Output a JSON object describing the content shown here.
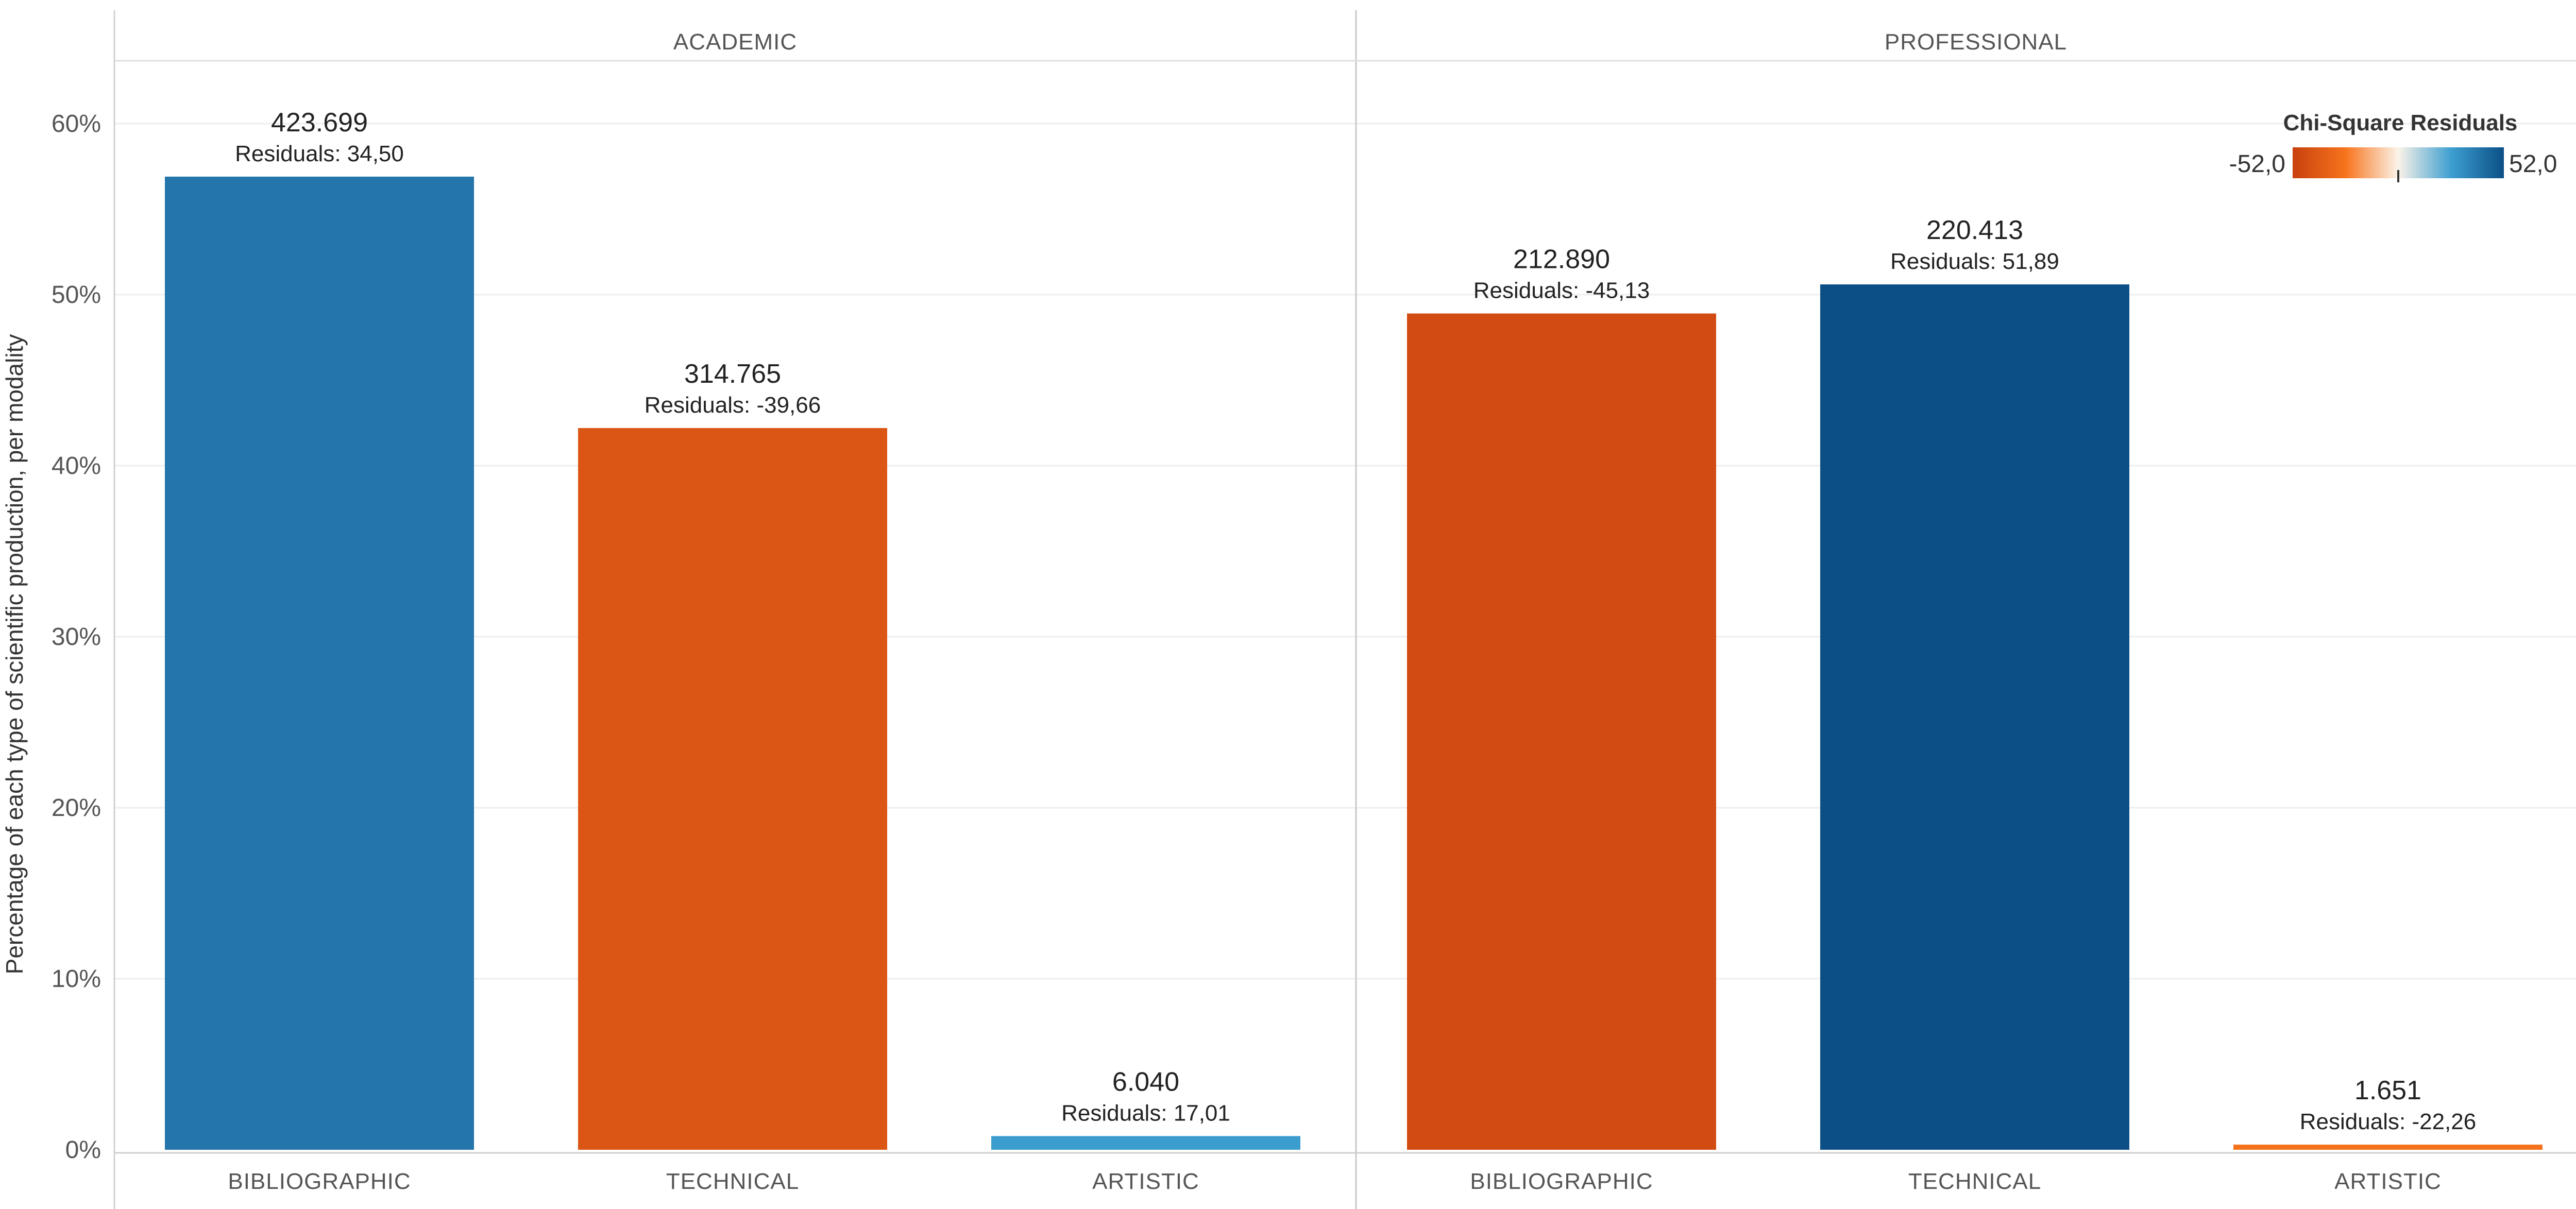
{
  "chart_data": {
    "type": "bar",
    "ylabel": "Percentage of each type of scientific production, per modality",
    "ylim": [
      0,
      0.63
    ],
    "yticks": [
      {
        "value": 0.0,
        "label": "0%"
      },
      {
        "value": 0.1,
        "label": "10%"
      },
      {
        "value": 0.2,
        "label": "20%"
      },
      {
        "value": 0.3,
        "label": "30%"
      },
      {
        "value": 0.4,
        "label": "40%"
      },
      {
        "value": 0.5,
        "label": "50%"
      },
      {
        "value": 0.6,
        "label": "60%"
      }
    ],
    "grid": true,
    "residual_prefix": "Residuals: ",
    "panels": [
      {
        "name": "ACADEMIC",
        "bars": [
          {
            "category": "BIBLIOGRAPHIC",
            "percentage": 0.569,
            "count_label": "423.699",
            "residual": 34.5,
            "residual_label": "34,50"
          },
          {
            "category": "TECHNICAL",
            "percentage": 0.422,
            "count_label": "314.765",
            "residual": -39.66,
            "residual_label": "-39,66"
          },
          {
            "category": "ARTISTIC",
            "percentage": 0.008,
            "count_label": "6.040",
            "residual": 17.01,
            "residual_label": "17,01"
          }
        ]
      },
      {
        "name": "PROFESSIONAL",
        "bars": [
          {
            "category": "BIBLIOGRAPHIC",
            "percentage": 0.489,
            "count_label": "212.890",
            "residual": -45.13,
            "residual_label": "-45,13"
          },
          {
            "category": "TECHNICAL",
            "percentage": 0.506,
            "count_label": "220.413",
            "residual": 51.89,
            "residual_label": "51,89"
          },
          {
            "category": "ARTISTIC",
            "percentage": 0.003,
            "count_label": "1.651",
            "residual": -22.26,
            "residual_label": "-22,26"
          }
        ]
      }
    ],
    "legend": {
      "title": "Chi-Square Residuals",
      "min": -52.0,
      "max": 52.0,
      "min_label": "-52,0",
      "max_label": "52,0",
      "placement": "top-right",
      "colors": {
        "min": "#c8400f",
        "neg_mid": "#f7741c",
        "zero": "#fbf3e8",
        "pos_mid": "#3d9fd1",
        "max": "#0b4f86"
      }
    },
    "colors": {
      "grid": "#eeeeee",
      "axis": "#c8c8c8",
      "text": "#555555"
    }
  }
}
